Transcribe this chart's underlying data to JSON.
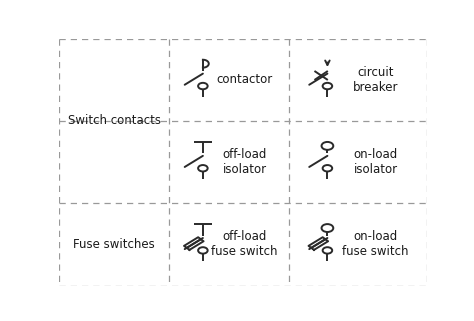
{
  "bg_color": "#ffffff",
  "line_color": "#2a2a2a",
  "dash_color": "#999999",
  "solid_color": "#2a2a2a",
  "text_color": "#1a1a1a",
  "lw_solid": 1.2,
  "lw_sym": 1.4,
  "fig_w": 4.74,
  "fig_h": 3.21,
  "dpi": 100,
  "cols": [
    0.0,
    0.3,
    0.625,
    1.0
  ],
  "rows": [
    0.0,
    0.335,
    0.665,
    1.0
  ],
  "labels": {
    "switch_contacts": "Switch contacts",
    "fuse_switches": "Fuse switches",
    "contactor": "contactor",
    "circuit_breaker": "circuit\nbreaker",
    "off_load_iso": "off-load\nisolator",
    "on_load_iso": "on-load\nisolator",
    "off_load_fuse": "off-load\nfuse switch",
    "on_load_fuse": "on-load\nfuse switch"
  },
  "fontsize_label": 8.5,
  "fontsize_rowlabel": 8.5
}
